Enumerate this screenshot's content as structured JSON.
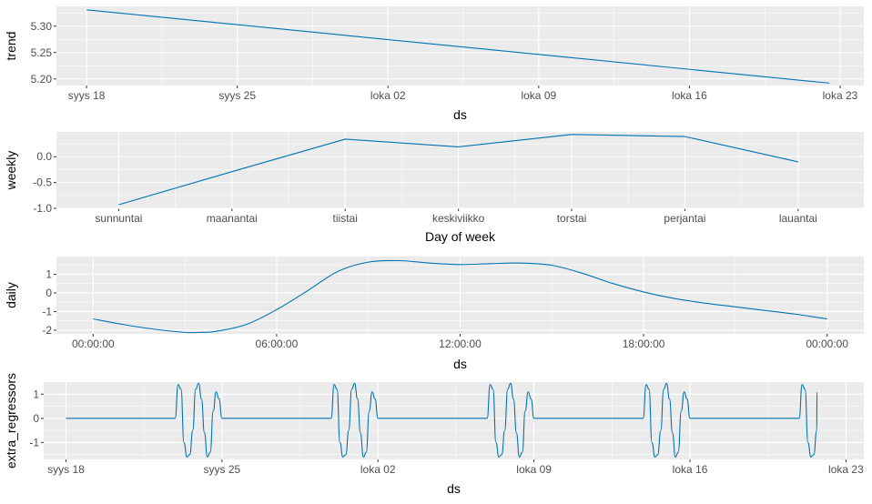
{
  "line_color": "#0072B2",
  "chart_data": [
    {
      "type": "line",
      "ylabel": "trend",
      "xlabel": "ds",
      "x_ticks": [
        {
          "value": 0,
          "label": "syys 18"
        },
        {
          "value": 7,
          "label": "syys 25"
        },
        {
          "value": 14,
          "label": "loka 02"
        },
        {
          "value": 21,
          "label": "loka 09"
        },
        {
          "value": 28,
          "label": "loka 16"
        },
        {
          "value": 35,
          "label": "loka 23"
        }
      ],
      "xlim": [
        -1.4,
        36.1
      ],
      "y_ticks": [
        {
          "value": 5.2,
          "label": "5.20"
        },
        {
          "value": 5.25,
          "label": "5.25"
        },
        {
          "value": 5.3,
          "label": "5.30"
        }
      ],
      "ylim": [
        5.1875,
        5.3375
      ],
      "series": [
        {
          "x": [
            0,
            34.5
          ],
          "y": [
            5.331,
            5.192
          ]
        }
      ]
    },
    {
      "type": "line",
      "ylabel": "weekly",
      "xlabel": "Day of week",
      "categories": [
        "sunnuntai",
        "maanantai",
        "tiistai",
        "keskiviikko",
        "torstai",
        "perjantai",
        "lauantai"
      ],
      "xlim": [
        -0.55,
        6.58
      ],
      "y_ticks": [
        {
          "value": 0.0,
          "label": "0.0"
        },
        {
          "value": -0.5,
          "label": "-0.5"
        },
        {
          "value": -1.0,
          "label": "-1.0"
        }
      ],
      "ylim": [
        -1.0,
        0.48
      ],
      "series": [
        {
          "values": [
            -0.93,
            -0.29,
            0.34,
            0.19,
            0.43,
            0.39,
            -0.1
          ]
        }
      ]
    },
    {
      "type": "line",
      "ylabel": "daily",
      "xlabel": "ds",
      "x_ticks": [
        {
          "value": 0,
          "label": "00:00:00"
        },
        {
          "value": 6,
          "label": "06:00:00"
        },
        {
          "value": 12,
          "label": "12:00:00"
        },
        {
          "value": 18,
          "label": "18:00:00"
        },
        {
          "value": 24,
          "label": "00:00:00"
        }
      ],
      "xlim": [
        -1.2,
        25.2
      ],
      "y_ticks": [
        {
          "value": 1,
          "label": "1"
        },
        {
          "value": 0,
          "label": "0"
        },
        {
          "value": -1,
          "label": "-1"
        },
        {
          "value": -2,
          "label": "-2"
        }
      ],
      "ylim": [
        -2.2,
        1.95
      ],
      "series": [
        {
          "x": [
            0,
            1,
            2,
            3,
            3.5,
            4,
            5,
            6,
            7,
            8,
            9,
            10,
            11,
            12,
            13,
            14,
            15,
            16,
            17,
            18,
            19,
            20,
            21,
            22,
            23,
            24
          ],
          "y": [
            -1.4,
            -1.7,
            -1.95,
            -2.12,
            -2.12,
            -2.07,
            -1.7,
            -0.9,
            0.1,
            1.15,
            1.65,
            1.73,
            1.6,
            1.52,
            1.57,
            1.6,
            1.48,
            1.05,
            0.5,
            0.05,
            -0.3,
            -0.55,
            -0.75,
            -0.95,
            -1.15,
            -1.4
          ]
        }
      ]
    },
    {
      "type": "line",
      "ylabel": "extra_regressors",
      "xlabel": "ds",
      "x_ticks": [
        {
          "value": 0,
          "label": "syys 18"
        },
        {
          "value": 7,
          "label": "syys 25"
        },
        {
          "value": 14,
          "label": "loka 02"
        },
        {
          "value": 21,
          "label": "loka 09"
        },
        {
          "value": 28,
          "label": "loka 16"
        },
        {
          "value": 35,
          "label": "loka 23"
        }
      ],
      "xlim": [
        -1.0,
        35.8
      ],
      "y_ticks": [
        {
          "value": 1,
          "label": "1"
        },
        {
          "value": 0,
          "label": "0"
        },
        {
          "value": -1,
          "label": "-1"
        }
      ],
      "ylim": [
        -1.7,
        1.5
      ],
      "series": [
        {
          "pulse_y": [
            0,
            1.4,
            1.2,
            -1.0,
            -1.6,
            -1.5,
            -0.5,
            1.2,
            1.45,
            0.8,
            -0.6,
            -1.6,
            -1.4,
            0.3,
            1.1,
            0.8,
            0
          ],
          "pulse_width": 2.1,
          "x": [
            0,
            4.9,
            11.9,
            18.9,
            25.9,
            32.9,
            33.7
          ],
          "y": [
            0,
            0,
            0,
            0,
            0,
            0,
            1.1
          ]
        }
      ]
    }
  ]
}
